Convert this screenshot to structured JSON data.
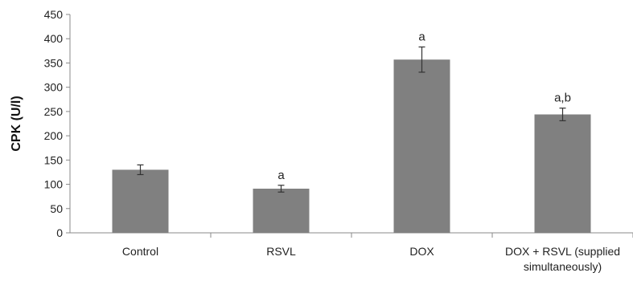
{
  "chart_data": {
    "type": "bar",
    "title": "",
    "xlabel": "",
    "ylabel": "CPK (U/l)",
    "ylim": [
      0,
      450
    ],
    "yticks": [
      0,
      50,
      100,
      150,
      200,
      250,
      300,
      350,
      400,
      450
    ],
    "grid": false,
    "categories": [
      [
        "Control"
      ],
      [
        "RSVL"
      ],
      [
        "DOX"
      ],
      [
        "DOX + RSVL (supplied",
        "simultaneously)"
      ]
    ],
    "values": [
      130,
      91,
      357,
      244
    ],
    "error": [
      10,
      7,
      26,
      13
    ],
    "annotations": [
      "",
      "a",
      "a",
      "a,b"
    ],
    "colors": {
      "bar": "#808080",
      "axis": "#8a8a8a",
      "error": "#333333"
    }
  }
}
